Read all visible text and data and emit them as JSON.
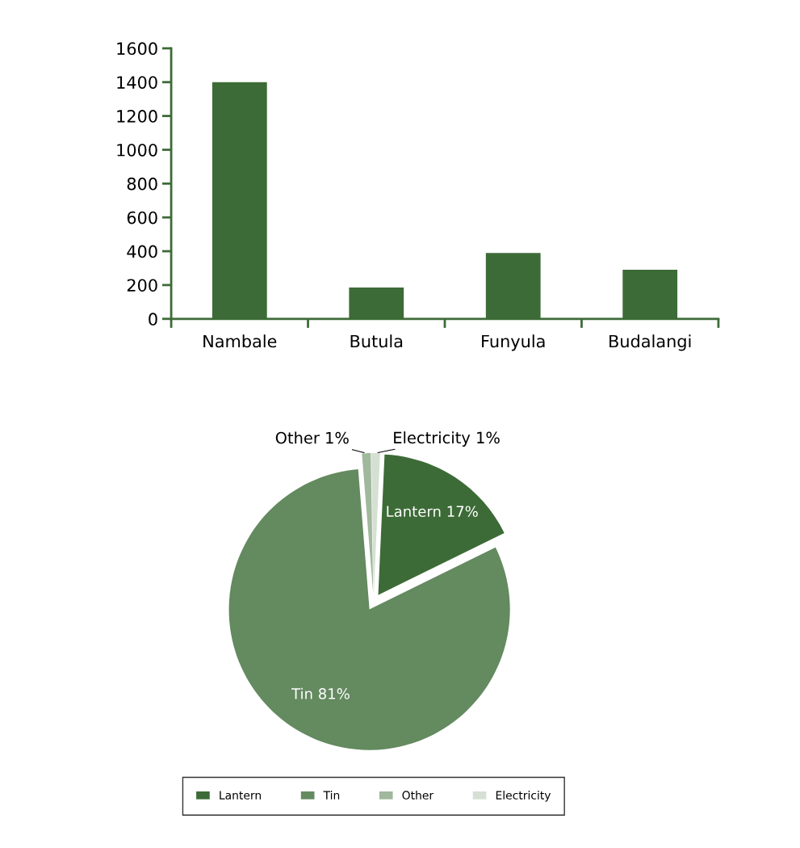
{
  "chart_data": [
    {
      "type": "bar",
      "categories": [
        "Nambale",
        "Butula",
        "Funyula",
        "Budalangi"
      ],
      "values": [
        1400,
        185,
        390,
        290
      ],
      "color": "#3d6b37",
      "ylim": [
        0,
        1600
      ],
      "yticks": [
        0,
        200,
        400,
        600,
        800,
        1000,
        1200,
        1400,
        1600
      ],
      "grid": false,
      "legend": false
    },
    {
      "type": "pie",
      "categories": [
        "Lantern",
        "Tin",
        "Other",
        "Electricity"
      ],
      "values": [
        17,
        81,
        1,
        1
      ],
      "colors": [
        "#3d6b37",
        "#648a60",
        "#a0b89c",
        "#d5e0d3"
      ],
      "value_labels": [
        "Lantern 17%",
        "Tin 81%",
        "Other 1%",
        "Electricity 1%"
      ],
      "legend": "bottom"
    }
  ]
}
